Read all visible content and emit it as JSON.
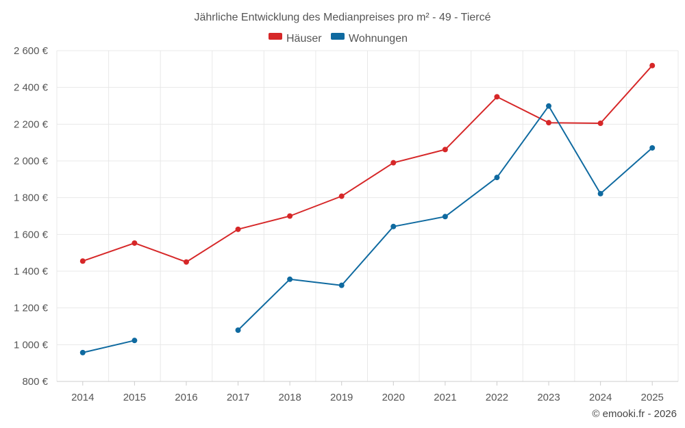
{
  "chart_data": {
    "type": "line",
    "title": "Jährliche Entwicklung des Medianpreises pro m² - 49 - Tiercé",
    "categories": [
      "2014",
      "2015",
      "2016",
      "2017",
      "2018",
      "2019",
      "2020",
      "2021",
      "2022",
      "2023",
      "2024",
      "2025"
    ],
    "series": [
      {
        "name": "Häuser",
        "color": "#d62728",
        "values": [
          1455,
          1553,
          1450,
          1628,
          1700,
          1808,
          1990,
          2062,
          2349,
          2208,
          2205,
          2519
        ]
      },
      {
        "name": "Wohnungen",
        "color": "#0f6aa0",
        "values": [
          957,
          1023,
          null,
          1079,
          1356,
          1323,
          1643,
          1697,
          1910,
          2299,
          1822,
          2071
        ]
      }
    ],
    "yticks": [
      "800 €",
      "1 000 €",
      "1 200 €",
      "1 400 €",
      "1 600 €",
      "1 800 €",
      "2 000 €",
      "2 200 €",
      "2 400 €",
      "2 600 €"
    ],
    "ylim": [
      800,
      2600
    ],
    "xlabel": "",
    "ylabel": "",
    "grid": true,
    "legend_position": "top-center"
  },
  "credit": "© emooki.fr - 2026"
}
